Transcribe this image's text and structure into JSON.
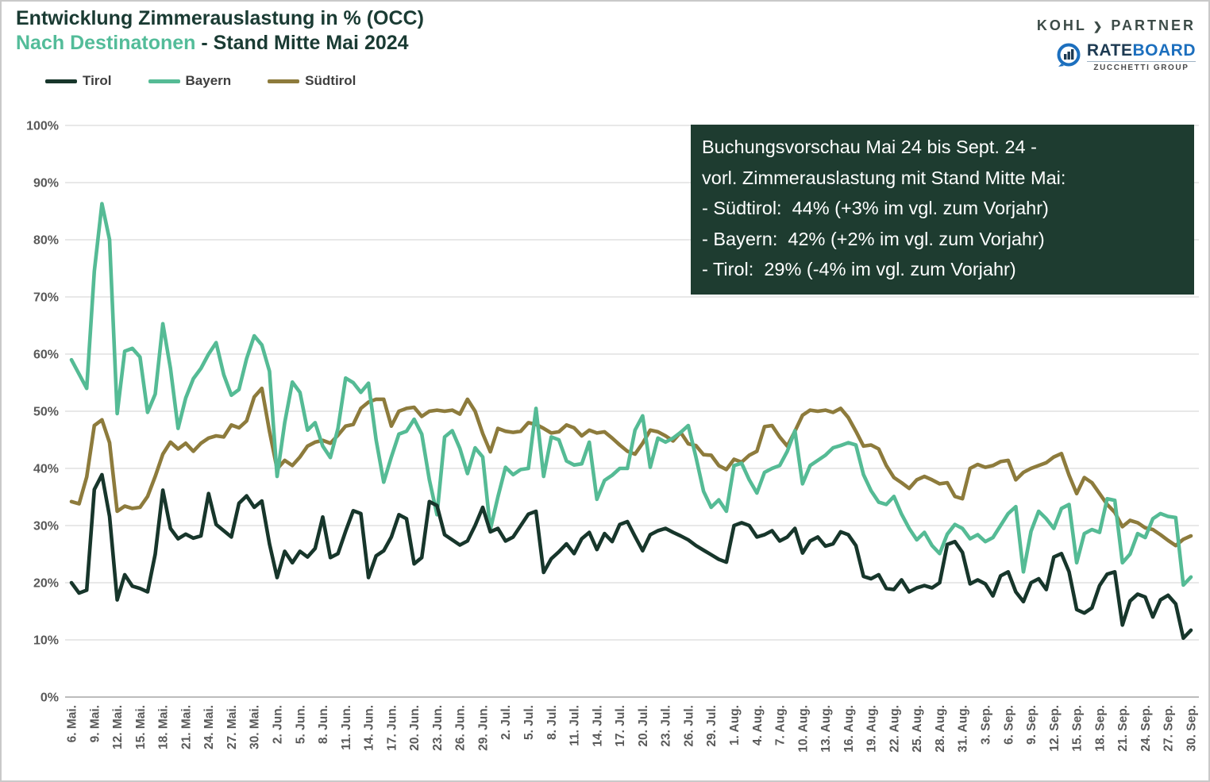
{
  "header": {
    "title": "Entwicklung Zimmerauslastung in % (OCC)",
    "subtitle_highlight": "Nach Destinatonen",
    "subtitle_rest": " - Stand Mitte Mai 2024"
  },
  "branding": {
    "kohl": "KOHL",
    "arrow": "❯",
    "partner": "PARTNER",
    "rateboard_rate": "RATE",
    "rateboard_board": "BOARD",
    "rateboard_sub": "ZUCCHETTI GROUP",
    "rateboard_icon": "chart-circle-icon"
  },
  "info_box": {
    "bg": "#1e3c30",
    "lines": [
      "Buchungsvorschau Mai 24 bis Sept. 24 -",
      "vorl. Zimmerauslastung mit Stand Mitte Mai:",
      "- Südtirol:  44% (+3% im vgl. zum Vorjahr)",
      "- Bayern:  42% (+2% im vgl. zum Vorjahr)",
      "- Tirol:  29% (-4% im vgl. zum Vorjahr)"
    ]
  },
  "chart_data": {
    "type": "line",
    "title": "Entwicklung Zimmerauslastung in % (OCC) - Nach Destinatonen - Stand Mitte Mai 2024",
    "xlabel": "",
    "ylabel": "",
    "ylim": [
      0,
      100
    ],
    "grid": true,
    "legend_position": "top-left",
    "x_start_date": "6. Mai 2024",
    "x_end_date": "30. Sep 2024",
    "x_tick_labels": [
      "6. Mai.",
      "9. Mai.",
      "12. Mai.",
      "15. Mai.",
      "18. Mai.",
      "21. Mai.",
      "24. Mai.",
      "27. Mai.",
      "30. Mai.",
      "2. Jun.",
      "5. Jun.",
      "8. Jun.",
      "11. Jun.",
      "14. Jun.",
      "17. Jun.",
      "20. Jun.",
      "23. Jun.",
      "26. Jun.",
      "29. Jun.",
      "2. Jul.",
      "5. Jul.",
      "8. Jul.",
      "11. Jul.",
      "14. Jul.",
      "17. Jul.",
      "20. Jul.",
      "23. Jul.",
      "26. Jul.",
      "29. Jul.",
      "1. Aug.",
      "4. Aug.",
      "7. Aug.",
      "10. Aug.",
      "13. Aug.",
      "16. Aug.",
      "19. Aug.",
      "22. Aug.",
      "25. Aug.",
      "28. Aug.",
      "31. Aug.",
      "3. Sep.",
      "6. Sep.",
      "9. Sep.",
      "12. Sep.",
      "15. Sep.",
      "18. Sep.",
      "21. Sep.",
      "24. Sep.",
      "27. Sep.",
      "30. Sep."
    ],
    "x_tick_every_days": 3,
    "y_tick_labels": [
      "0%",
      "10%",
      "20%",
      "30%",
      "40%",
      "50%",
      "60%",
      "70%",
      "80%",
      "90%",
      "100%"
    ],
    "series": [
      {
        "name": "Tirol",
        "color": "#17362b",
        "values": [
          20,
          18.2,
          18.7,
          36.3,
          38.9,
          31.6,
          17,
          21.4,
          19.4,
          19,
          18.4,
          25,
          36.2,
          29.5,
          27.7,
          28.5,
          27.8,
          28.2,
          35.6,
          30.2,
          29.1,
          28,
          33.9,
          35.2,
          33.2,
          34.3,
          26.8,
          20.9,
          25.5,
          23.5,
          25.5,
          24.5,
          26,
          31.5,
          24.4,
          25.1,
          29,
          32.6,
          32.1,
          20.9,
          24.7,
          25.6,
          28,
          31.9,
          31.2,
          23.3,
          24.4,
          34.2,
          33.5,
          28.4,
          27.5,
          26.6,
          27.3,
          30,
          33.2,
          28.9,
          29.5,
          27.3,
          28,
          30,
          32,
          32.5,
          21.8,
          24.2,
          25.4,
          26.8,
          25.1,
          27.7,
          28.8,
          25.8,
          28.6,
          27.2,
          30.2,
          30.7,
          28.1,
          25.6,
          28.4,
          29.1,
          29.5,
          28.8,
          28.2,
          27.5,
          26.5,
          25.7,
          24.9,
          24.1,
          23.6,
          30,
          30.5,
          30,
          28,
          28.4,
          29.1,
          27.3,
          28,
          29.5,
          25.2,
          27.3,
          28,
          26.4,
          26.8,
          28.9,
          28.4,
          26.5,
          21.1,
          20.7,
          21.4,
          19,
          18.8,
          20.5,
          18.4,
          19.1,
          19.5,
          19.1,
          20,
          26.7,
          27.2,
          25.3,
          19.8,
          20.5,
          19.8,
          17.7,
          21.2,
          21.9,
          18.4,
          16.7,
          20,
          20.7,
          18.8,
          24.5,
          25.1,
          21.9,
          15.3,
          14.7,
          15.6,
          19.5,
          21.5,
          21.9,
          12.6,
          16.8,
          18,
          17.5,
          14,
          17,
          17.8,
          16.3,
          10.3,
          11.7
        ]
      },
      {
        "name": "Bayern",
        "color": "#55bb95",
        "values": [
          59,
          56.5,
          54,
          74.5,
          86.3,
          80,
          49.6,
          60.5,
          61,
          59.5,
          49.8,
          53,
          65.3,
          57.5,
          47,
          52.3,
          55.7,
          57.5,
          60,
          62,
          56.4,
          52.8,
          53.8,
          59.2,
          63.2,
          61.6,
          57,
          38.6,
          48,
          55.1,
          53.3,
          46.7,
          48,
          43.9,
          41.9,
          47,
          55.8,
          55,
          53.3,
          54.9,
          45,
          37.6,
          42,
          46,
          46.5,
          48.6,
          46,
          38,
          31.9,
          45.5,
          46.6,
          43.5,
          39.1,
          43.6,
          42,
          29.3,
          35,
          40.2,
          38.9,
          39.8,
          40,
          50.5,
          38.6,
          45.5,
          45,
          41.3,
          40.6,
          40.8,
          44.6,
          34.6,
          37.9,
          38.8,
          40,
          40,
          46.7,
          49.2,
          40.2,
          45.3,
          44.6,
          45.3,
          46.3,
          47.5,
          42,
          36,
          33.2,
          34.5,
          32.5,
          40.5,
          40.9,
          38,
          35.7,
          39.3,
          40,
          40.5,
          43,
          46.6,
          37.3,
          40.5,
          41.4,
          42.3,
          43.6,
          44,
          44.5,
          44.1,
          38.9,
          36.1,
          34.1,
          33.7,
          35.1,
          32,
          29.5,
          27.5,
          28.8,
          26.5,
          25.1,
          28.5,
          30.2,
          29.5,
          27.7,
          28.4,
          27.2,
          27.9,
          30,
          32.1,
          33.3,
          21.9,
          29,
          32.5,
          31.2,
          29.5,
          33,
          33.7,
          23.5,
          28.6,
          29.3,
          28.8,
          34.7,
          34.4,
          23.5,
          25,
          28.6,
          27.9,
          31.2,
          32.1,
          31.6,
          31.4,
          19.6,
          21
        ]
      },
      {
        "name": "Südtirol",
        "color": "#8d7b3c",
        "values": [
          34.2,
          33.8,
          38.5,
          47.5,
          48.5,
          44.5,
          32.5,
          33.4,
          33,
          33.2,
          35.1,
          38.6,
          42.5,
          44.6,
          43.4,
          44.4,
          43,
          44.4,
          45.3,
          45.7,
          45.5,
          47.6,
          47.1,
          48.3,
          52.5,
          54,
          46.5,
          39.9,
          41.4,
          40.5,
          42,
          43.9,
          44.6,
          44.9,
          44.4,
          45.8,
          47.4,
          47.7,
          50.5,
          51.6,
          52.1,
          52.1,
          47.4,
          50,
          50.5,
          50.7,
          49.1,
          50,
          50.2,
          50,
          50.2,
          49.5,
          52.1,
          50,
          46.1,
          42.9,
          47,
          46.5,
          46.3,
          46.5,
          48,
          47.7,
          47,
          46.2,
          46.4,
          47.6,
          47.1,
          45.7,
          46.7,
          46.2,
          46.4,
          45.3,
          44.1,
          43,
          42.5,
          44.4,
          46.7,
          46.4,
          45.7,
          44.8,
          46.3,
          44.3,
          44,
          42.4,
          42.3,
          40.5,
          39.8,
          41.6,
          41.1,
          42.3,
          43,
          47.3,
          47.5,
          45.5,
          43.9,
          46.5,
          49.3,
          50.2,
          50,
          50.2,
          49.8,
          50.5,
          48.9,
          46.5,
          43.9,
          44.1,
          43.4,
          40.5,
          38.4,
          37.5,
          36.5,
          38,
          38.6,
          38,
          37.3,
          37.5,
          35.1,
          34.7,
          40,
          40.7,
          40.2,
          40.5,
          41.2,
          41.4,
          38,
          39.3,
          40,
          40.5,
          41,
          42,
          42.6,
          38.8,
          35.6,
          38.4,
          37.5,
          35.6,
          33.7,
          32.3,
          29.8,
          30.9,
          30.5,
          29.6,
          29.3,
          28.4,
          27.4,
          26.5,
          27.6,
          28.2
        ]
      }
    ]
  }
}
